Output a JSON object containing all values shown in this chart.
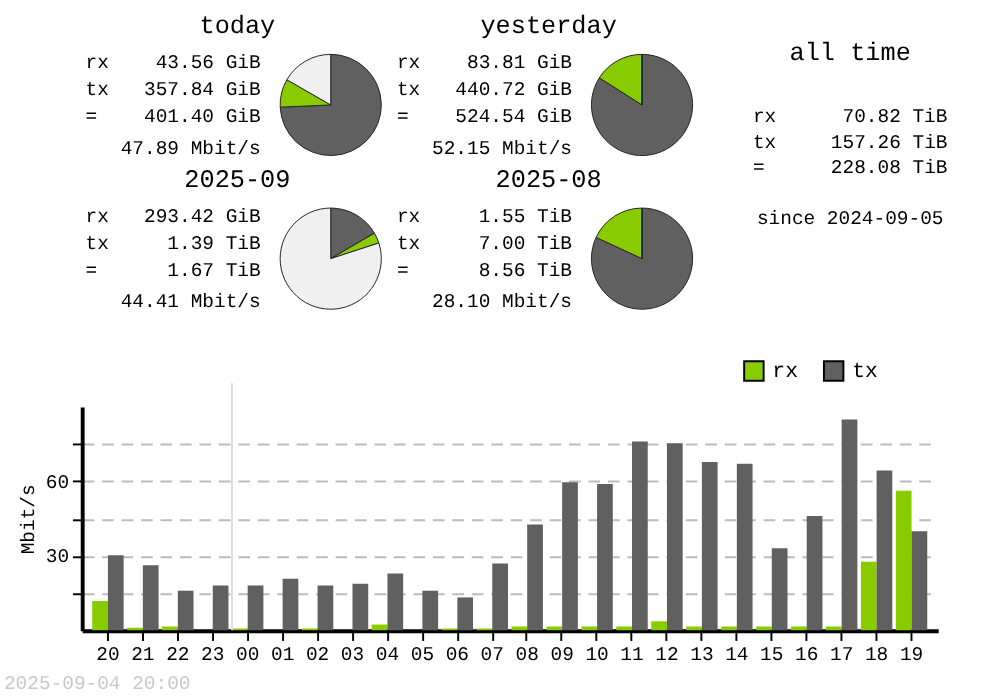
{
  "chart_data": [
    {
      "type": "pie",
      "title": "today",
      "categories": [
        null,
        null,
        null
      ],
      "values": [
        74.3,
        9.0,
        16.7
      ],
      "colors": [
        "#606060",
        "#88cc00",
        "#f0f0f0"
      ],
      "annotations": [
        "rx",
        "43.56 GiB",
        "tx",
        "357.84 GiB",
        "=",
        "401.40 GiB",
        "47.89 Mbit/s"
      ]
    },
    {
      "type": "pie",
      "title": "yesterday",
      "categories": [
        null,
        null,
        null
      ],
      "values": [
        84.0,
        16.0,
        0
      ],
      "colors": [
        "#606060",
        "#88cc00",
        "#f0f0f0"
      ],
      "annotations": [
        "rx",
        "83.81 GiB",
        "tx",
        "440.72 GiB",
        "=",
        "524.54 GiB",
        "52.15 Mbit/s"
      ]
    },
    {
      "type": "pie",
      "title": "2025-09",
      "categories": [
        null,
        null,
        null
      ],
      "values": [
        16.6,
        3.4,
        80.0
      ],
      "colors": [
        "#606060",
        "#88cc00",
        "#f0f0f0"
      ],
      "annotations": [
        "rx",
        "293.42 GiB",
        "tx",
        "1.39 TiB",
        "=",
        "1.67 TiB",
        "44.41 Mbit/s"
      ]
    },
    {
      "type": "pie",
      "title": "2025-08",
      "categories": [
        null,
        null,
        null
      ],
      "values": [
        81.9,
        18.1,
        0
      ],
      "colors": [
        "#606060",
        "#88cc00",
        "#f0f0f0"
      ],
      "annotations": [
        "rx",
        "1.55 TiB",
        "tx",
        "7.00 TiB",
        "=",
        "8.56 TiB",
        "28.10 Mbit/s"
      ]
    },
    {
      "type": "other",
      "title": "all time",
      "annotations": [
        "rx",
        "70.82 TiB",
        "tx",
        "157.26 TiB",
        "=",
        "228.08 TiB",
        "since 2024-09-05"
      ]
    },
    {
      "type": "bar",
      "ylabel": "Mbit/s",
      "categories": [
        "20",
        "21",
        "22",
        "23",
        "00",
        "01",
        "02",
        "03",
        "04",
        "05",
        "06",
        "07",
        "08",
        "09",
        "10",
        "11",
        "12",
        "13",
        "14",
        "15",
        "16",
        "17",
        "18",
        "19"
      ],
      "series": [
        {
          "name": "rx",
          "color": "#88cc00",
          "values": [
            11.8,
            1.0,
            1.5,
            0,
            0.7,
            0,
            0.7,
            0,
            2.3,
            0,
            0.7,
            0.7,
            1.5,
            1.5,
            1.5,
            1.5,
            3.6,
            1.5,
            1.5,
            1.5,
            1.5,
            1.5,
            27.5,
            56.1
          ]
        },
        {
          "name": "tx",
          "color": "#606060",
          "values": [
            30.2,
            26.1,
            15.9,
            18.0,
            18.0,
            20.7,
            18.0,
            18.7,
            22.8,
            15.9,
            13.2,
            26.8,
            42.5,
            59.5,
            58.8,
            75.9,
            75.2,
            67.7,
            67.0,
            33.0,
            46.0,
            84.8,
            64.3,
            39.8
          ]
        }
      ],
      "ylim": [
        0,
        90
      ],
      "yticks": [
        {
          "value": 15,
          "label": null
        },
        30,
        {
          "value": 45,
          "label": null
        },
        60,
        {
          "value": 75,
          "label": null
        }
      ],
      "grid": "y",
      "legend": "top right",
      "ref_lines": [
        {
          "axis": "x",
          "value": "00",
          "color": "#dddddd"
        }
      ],
      "annotations": [
        "2025-09-04 20:00"
      ]
    }
  ]
}
